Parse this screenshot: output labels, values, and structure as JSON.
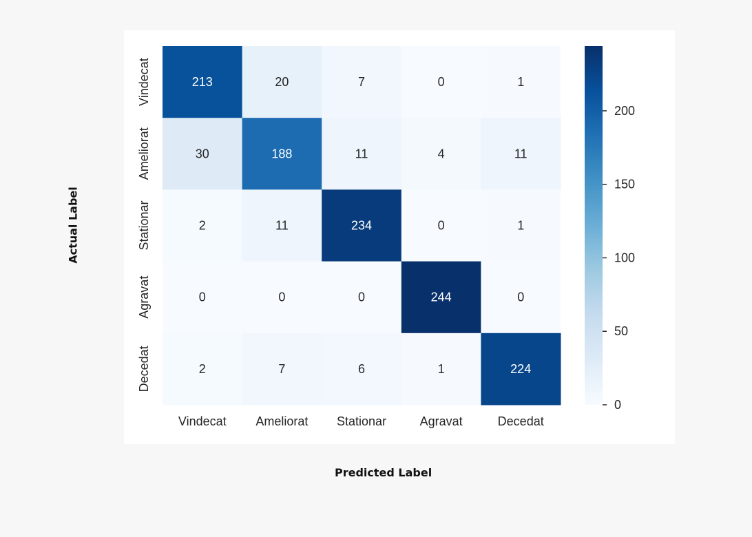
{
  "chart_data": {
    "type": "heatmap",
    "xlabel": "Predicted Label",
    "ylabel": "Actual Label",
    "x_categories": [
      "Vindecat",
      "Ameliorat",
      "Stationar",
      "Agravat",
      "Decedat"
    ],
    "y_categories": [
      "Vindecat",
      "Ameliorat",
      "Stationar",
      "Agravat",
      "Decedat"
    ],
    "matrix": [
      [
        213,
        20,
        7,
        0,
        1
      ],
      [
        30,
        188,
        11,
        4,
        11
      ],
      [
        2,
        11,
        234,
        0,
        1
      ],
      [
        0,
        0,
        0,
        244,
        0
      ],
      [
        2,
        7,
        6,
        1,
        224
      ]
    ],
    "colorbar": {
      "min": 0,
      "max": 244,
      "ticks": [
        0,
        50,
        100,
        150,
        200
      ],
      "colormap": "Blues"
    },
    "grid": false
  }
}
